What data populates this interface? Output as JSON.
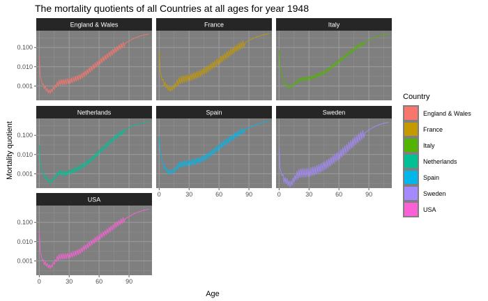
{
  "chart_data": {
    "type": "line",
    "title": "The mortality quotients of all Countries at all ages for year 1948",
    "xlabel": "Age",
    "ylabel": "Mortality quotient",
    "x_scale": "linear",
    "y_scale": "log10",
    "xlim": [
      -3,
      113
    ],
    "ylim": [
      0.00018,
      0.75
    ],
    "x_ticks": [
      0,
      30,
      60,
      90
    ],
    "x_tick_labels": [
      "0",
      "30",
      "60",
      "90"
    ],
    "y_ticks": [
      0.001,
      0.01,
      0.1
    ],
    "y_tick_labels": [
      "0.001",
      "0.010",
      "0.100"
    ],
    "grid": true,
    "panel_background": "#7f7f7f",
    "strip_background": "#262626",
    "legend": {
      "title": "Country",
      "position": "right",
      "entries": [
        "England & Wales",
        "France",
        "Italy",
        "Netherlands",
        "Spain",
        "Sweden",
        "USA"
      ]
    },
    "facets": [
      {
        "name": "England & Wales",
        "color": "#F8766D",
        "band": 0.28,
        "x": [
          0,
          1,
          3,
          5,
          8,
          10,
          12,
          15,
          18,
          20,
          22,
          25,
          30,
          35,
          40,
          45,
          50,
          55,
          60,
          65,
          70,
          75,
          80,
          85,
          90,
          95,
          100,
          105,
          110
        ],
        "y": [
          0.034,
          0.0033,
          0.0012,
          0.0009,
          0.0006,
          0.0005,
          0.00055,
          0.0008,
          0.0012,
          0.0015,
          0.0016,
          0.0016,
          0.0018,
          0.0022,
          0.0028,
          0.004,
          0.0065,
          0.0105,
          0.017,
          0.027,
          0.042,
          0.065,
          0.1,
          0.15,
          0.22,
          0.3,
          0.38,
          0.45,
          0.5
        ]
      },
      {
        "name": "France",
        "color": "#C49A00",
        "band": 0.35,
        "x": [
          0,
          1,
          3,
          5,
          8,
          10,
          12,
          15,
          18,
          20,
          22,
          25,
          30,
          35,
          40,
          45,
          50,
          55,
          60,
          65,
          70,
          75,
          80,
          85,
          90,
          95,
          100,
          105,
          110
        ],
        "y": [
          0.06,
          0.006,
          0.002,
          0.0014,
          0.0009,
          0.0007,
          0.0007,
          0.0009,
          0.0014,
          0.0018,
          0.0021,
          0.0023,
          0.0027,
          0.0033,
          0.0042,
          0.0058,
          0.0085,
          0.013,
          0.02,
          0.031,
          0.048,
          0.075,
          0.11,
          0.16,
          0.23,
          0.31,
          0.39,
          0.46,
          0.52
        ]
      },
      {
        "name": "Italy",
        "color": "#53B400",
        "band": 0.2,
        "x": [
          0,
          1,
          3,
          5,
          8,
          10,
          12,
          15,
          18,
          20,
          22,
          25,
          30,
          35,
          40,
          45,
          50,
          55,
          60,
          65,
          70,
          75,
          80,
          85,
          90,
          95,
          100,
          105,
          110
        ],
        "y": [
          0.075,
          0.012,
          0.003,
          0.0016,
          0.001,
          0.0009,
          0.0009,
          0.0012,
          0.0017,
          0.002,
          0.0022,
          0.0023,
          0.0025,
          0.003,
          0.0038,
          0.005,
          0.0075,
          0.012,
          0.019,
          0.031,
          0.05,
          0.08,
          0.12,
          0.17,
          0.24,
          0.32,
          0.4,
          0.47,
          0.53
        ]
      },
      {
        "name": "Netherlands",
        "color": "#00C094",
        "band": 0.25,
        "x": [
          0,
          1,
          3,
          5,
          8,
          10,
          12,
          15,
          18,
          20,
          22,
          25,
          30,
          35,
          40,
          45,
          50,
          55,
          60,
          65,
          70,
          75,
          80,
          85,
          90,
          95,
          100,
          105,
          110
        ],
        "y": [
          0.03,
          0.0035,
          0.0013,
          0.0008,
          0.0005,
          0.0004,
          0.0004,
          0.0006,
          0.0009,
          0.0012,
          0.0011,
          0.001,
          0.0012,
          0.0015,
          0.002,
          0.0029,
          0.0045,
          0.0075,
          0.013,
          0.023,
          0.04,
          0.068,
          0.11,
          0.17,
          0.25,
          0.33,
          0.4,
          0.45,
          0.48
        ]
      },
      {
        "name": "Spain",
        "color": "#00B6EB",
        "band": 0.3,
        "x": [
          0,
          1,
          3,
          5,
          8,
          10,
          12,
          15,
          18,
          20,
          22,
          25,
          30,
          35,
          40,
          45,
          50,
          55,
          60,
          65,
          70,
          75,
          80,
          85,
          90,
          95,
          100,
          105,
          110
        ],
        "y": [
          0.08,
          0.015,
          0.004,
          0.0022,
          0.0014,
          0.0012,
          0.0012,
          0.0015,
          0.0022,
          0.0028,
          0.0031,
          0.0033,
          0.0036,
          0.0042,
          0.005,
          0.0065,
          0.0095,
          0.015,
          0.024,
          0.038,
          0.058,
          0.088,
          0.13,
          0.18,
          0.25,
          0.32,
          0.4,
          0.47,
          0.52
        ]
      },
      {
        "name": "Sweden",
        "color": "#A58AFF",
        "band": 0.45,
        "x": [
          0,
          1,
          3,
          5,
          8,
          10,
          12,
          15,
          18,
          20,
          22,
          25,
          30,
          35,
          40,
          45,
          50,
          55,
          60,
          65,
          70,
          75,
          80,
          85,
          90,
          95,
          100,
          105,
          110
        ],
        "y": [
          0.024,
          0.002,
          0.0008,
          0.0005,
          0.0004,
          0.0003,
          0.0003,
          0.0005,
          0.0008,
          0.001,
          0.0011,
          0.0011,
          0.0012,
          0.0014,
          0.0018,
          0.0025,
          0.0037,
          0.0058,
          0.009,
          0.015,
          0.026,
          0.045,
          0.075,
          0.12,
          0.19,
          0.27,
          0.35,
          0.42,
          0.47
        ]
      },
      {
        "name": "USA",
        "color": "#FB61D7",
        "band": 0.28,
        "x": [
          0,
          1,
          3,
          5,
          8,
          10,
          12,
          15,
          18,
          20,
          22,
          25,
          30,
          35,
          40,
          45,
          50,
          55,
          60,
          65,
          70,
          75,
          80,
          85,
          90,
          95,
          100,
          105,
          110
        ],
        "y": [
          0.034,
          0.003,
          0.0011,
          0.0008,
          0.0006,
          0.0005,
          0.0005,
          0.0008,
          0.0013,
          0.0016,
          0.0017,
          0.0017,
          0.0019,
          0.0023,
          0.003,
          0.0045,
          0.007,
          0.011,
          0.017,
          0.026,
          0.04,
          0.062,
          0.095,
          0.14,
          0.2,
          0.28,
          0.36,
          0.43,
          0.48
        ]
      }
    ]
  }
}
